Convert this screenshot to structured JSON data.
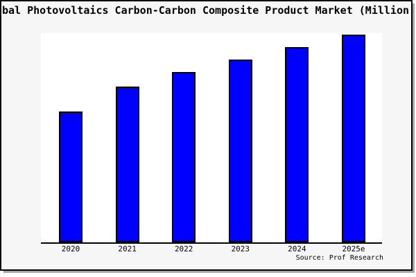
{
  "chart_data": {
    "type": "bar",
    "title": "bal Photovoltaics Carbon-Carbon Composite Product Market (Million U",
    "categories": [
      "2020",
      "2021",
      "2022",
      "2023",
      "2024",
      "2025e"
    ],
    "values": [
      63,
      75,
      82,
      88,
      94,
      100
    ],
    "value_unit": "relative index (2025e = 100); y-axis has no tick labels",
    "xlabel": "",
    "ylabel": "",
    "ylim": [
      0,
      101
    ],
    "grid": false,
    "legend": false,
    "source": "Source: Prof Research",
    "colors": {
      "bar_fill": "#0000ff",
      "bar_border": "#000000",
      "figure_bg": "#f6f6f6",
      "plot_bg": "#ffffff",
      "axis": "#000000",
      "text": "#000000"
    }
  }
}
